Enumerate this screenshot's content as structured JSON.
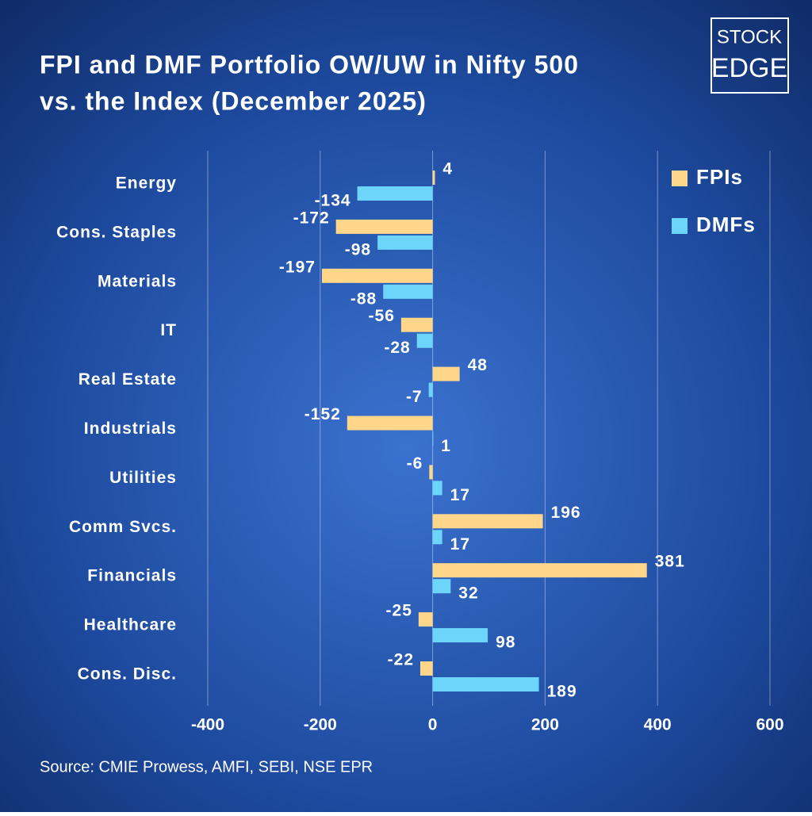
{
  "logo": [
    "STOCK",
    "EDGE"
  ],
  "chart_data": {
    "type": "hbar",
    "title": [
      "FPI and DMF Portfolio OW/UW in Nifty 500",
      "vs. the Index (December 2025)"
    ],
    "source": "Source: CMIE Prowess, AMFI, SEBI, NSE EPR",
    "categories": [
      "Energy",
      "Cons. Staples",
      "Materials",
      "IT",
      "Real Estate",
      "Industrials",
      "Utilities",
      "Comm Svcs.",
      "Financials",
      "Healthcare",
      "Cons. Disc."
    ],
    "series": [
      {
        "name": "FPIs",
        "color": "#ffd68a",
        "values": [
          4,
          -172,
          -197,
          -56,
          48,
          -152,
          -6,
          196,
          381,
          -25,
          -22
        ]
      },
      {
        "name": "DMFs",
        "color": "#6dd5fa",
        "values": [
          -134,
          -98,
          -88,
          -28,
          -7,
          1,
          17,
          17,
          32,
          98,
          189
        ]
      }
    ],
    "xlim": [
      -400,
      600
    ],
    "xticks": [
      -400,
      -200,
      0,
      200,
      400,
      600
    ],
    "grid": true,
    "legend": "top-right"
  }
}
